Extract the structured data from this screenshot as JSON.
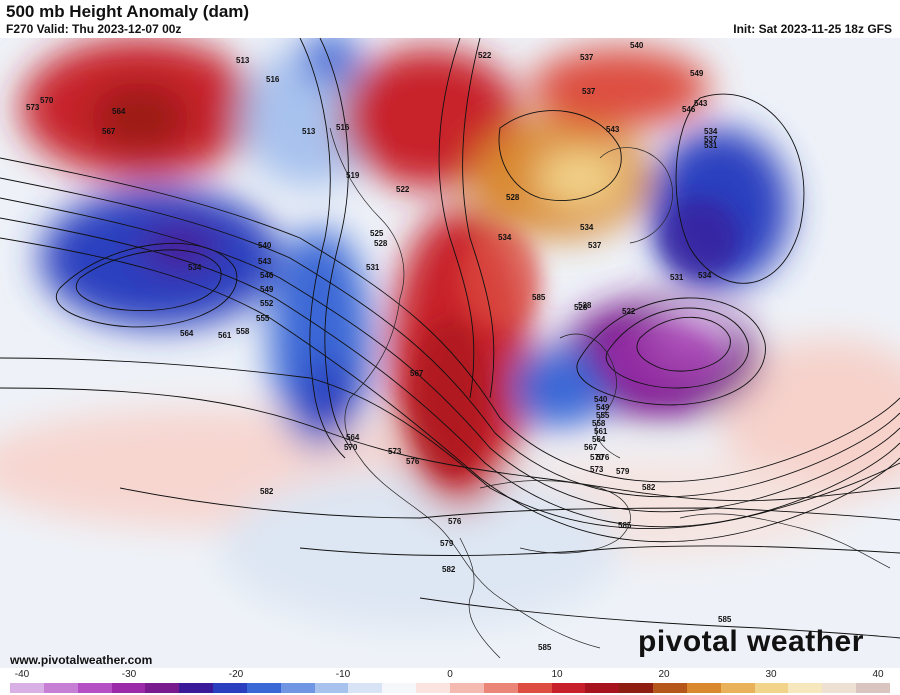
{
  "header": {
    "title": "500 mb Height Anomaly (dam)",
    "valid": "F270 Valid: Thu 2023-12-07 00z",
    "init": "Init: Sat 2023-11-25 18z GFS"
  },
  "footer": {
    "website": "www.pivotalweather.com",
    "brand": "pivotal weather"
  },
  "colorbar": {
    "ticks": [
      "-40",
      "-30",
      "-20",
      "-10",
      "0",
      "10",
      "20",
      "30",
      "40"
    ],
    "colors": [
      "#d9b0e6",
      "#c77fd6",
      "#b44fc4",
      "#9b2aa8",
      "#7a1a8f",
      "#3b1a99",
      "#2a3fbf",
      "#3a67d6",
      "#6f95e3",
      "#a8c2ee",
      "#d8e4f6",
      "#f5f7fb",
      "#fbe3df",
      "#f4b9b0",
      "#ea8577",
      "#dd4d40",
      "#c8202a",
      "#a8141e",
      "#8e1e12",
      "#b5561b",
      "#d9882e",
      "#e9b25a",
      "#f2d38a",
      "#f7e7bd",
      "#efe0d4",
      "#d9c4c0"
    ]
  },
  "contour_labels": [
    "513",
    "516",
    "513",
    "516",
    "519",
    "522",
    "522",
    "525",
    "528",
    "531",
    "534",
    "537",
    "540",
    "543",
    "546",
    "549",
    "552",
    "555",
    "558",
    "561",
    "564",
    "567",
    "570",
    "573",
    "576",
    "579",
    "582",
    "585"
  ],
  "map_labels": [
    {
      "text": "570"
    },
    {
      "text": "573"
    },
    {
      "text": "564"
    },
    {
      "text": "567"
    },
    {
      "text": "513"
    },
    {
      "text": "516"
    },
    {
      "text": "513"
    },
    {
      "text": "516"
    },
    {
      "text": "519"
    },
    {
      "text": "522"
    },
    {
      "text": "525"
    },
    {
      "text": "528"
    },
    {
      "text": "531"
    },
    {
      "text": "534"
    },
    {
      "text": "540"
    },
    {
      "text": "543"
    },
    {
      "text": "546"
    },
    {
      "text": "549"
    },
    {
      "text": "552"
    },
    {
      "text": "555"
    },
    {
      "text": "558"
    },
    {
      "text": "561"
    },
    {
      "text": "564"
    },
    {
      "text": "567"
    },
    {
      "text": "564"
    },
    {
      "text": "570"
    },
    {
      "text": "573"
    },
    {
      "text": "576"
    },
    {
      "text": "582"
    },
    {
      "text": "576"
    },
    {
      "text": "579"
    },
    {
      "text": "582"
    },
    {
      "text": "585"
    },
    {
      "text": "585"
    },
    {
      "text": "585"
    },
    {
      "text": "522"
    },
    {
      "text": "537"
    },
    {
      "text": "540"
    },
    {
      "text": "549"
    },
    {
      "text": "543"
    },
    {
      "text": "546"
    },
    {
      "text": "534"
    },
    {
      "text": "537"
    },
    {
      "text": "531"
    },
    {
      "text": "528"
    },
    {
      "text": "534"
    },
    {
      "text": "537"
    },
    {
      "text": "528"
    },
    {
      "text": "534"
    },
    {
      "text": "531"
    },
    {
      "text": "528"
    },
    {
      "text": "522"
    },
    {
      "text": "540"
    },
    {
      "text": "549"
    },
    {
      "text": "555"
    },
    {
      "text": "558"
    },
    {
      "text": "561"
    },
    {
      "text": "564"
    },
    {
      "text": "567"
    },
    {
      "text": "570"
    },
    {
      "text": "573"
    },
    {
      "text": "576"
    },
    {
      "text": "579"
    },
    {
      "text": "582"
    },
    {
      "text": "585"
    },
    {
      "text": "534"
    },
    {
      "text": "537"
    },
    {
      "text": "543"
    }
  ]
}
